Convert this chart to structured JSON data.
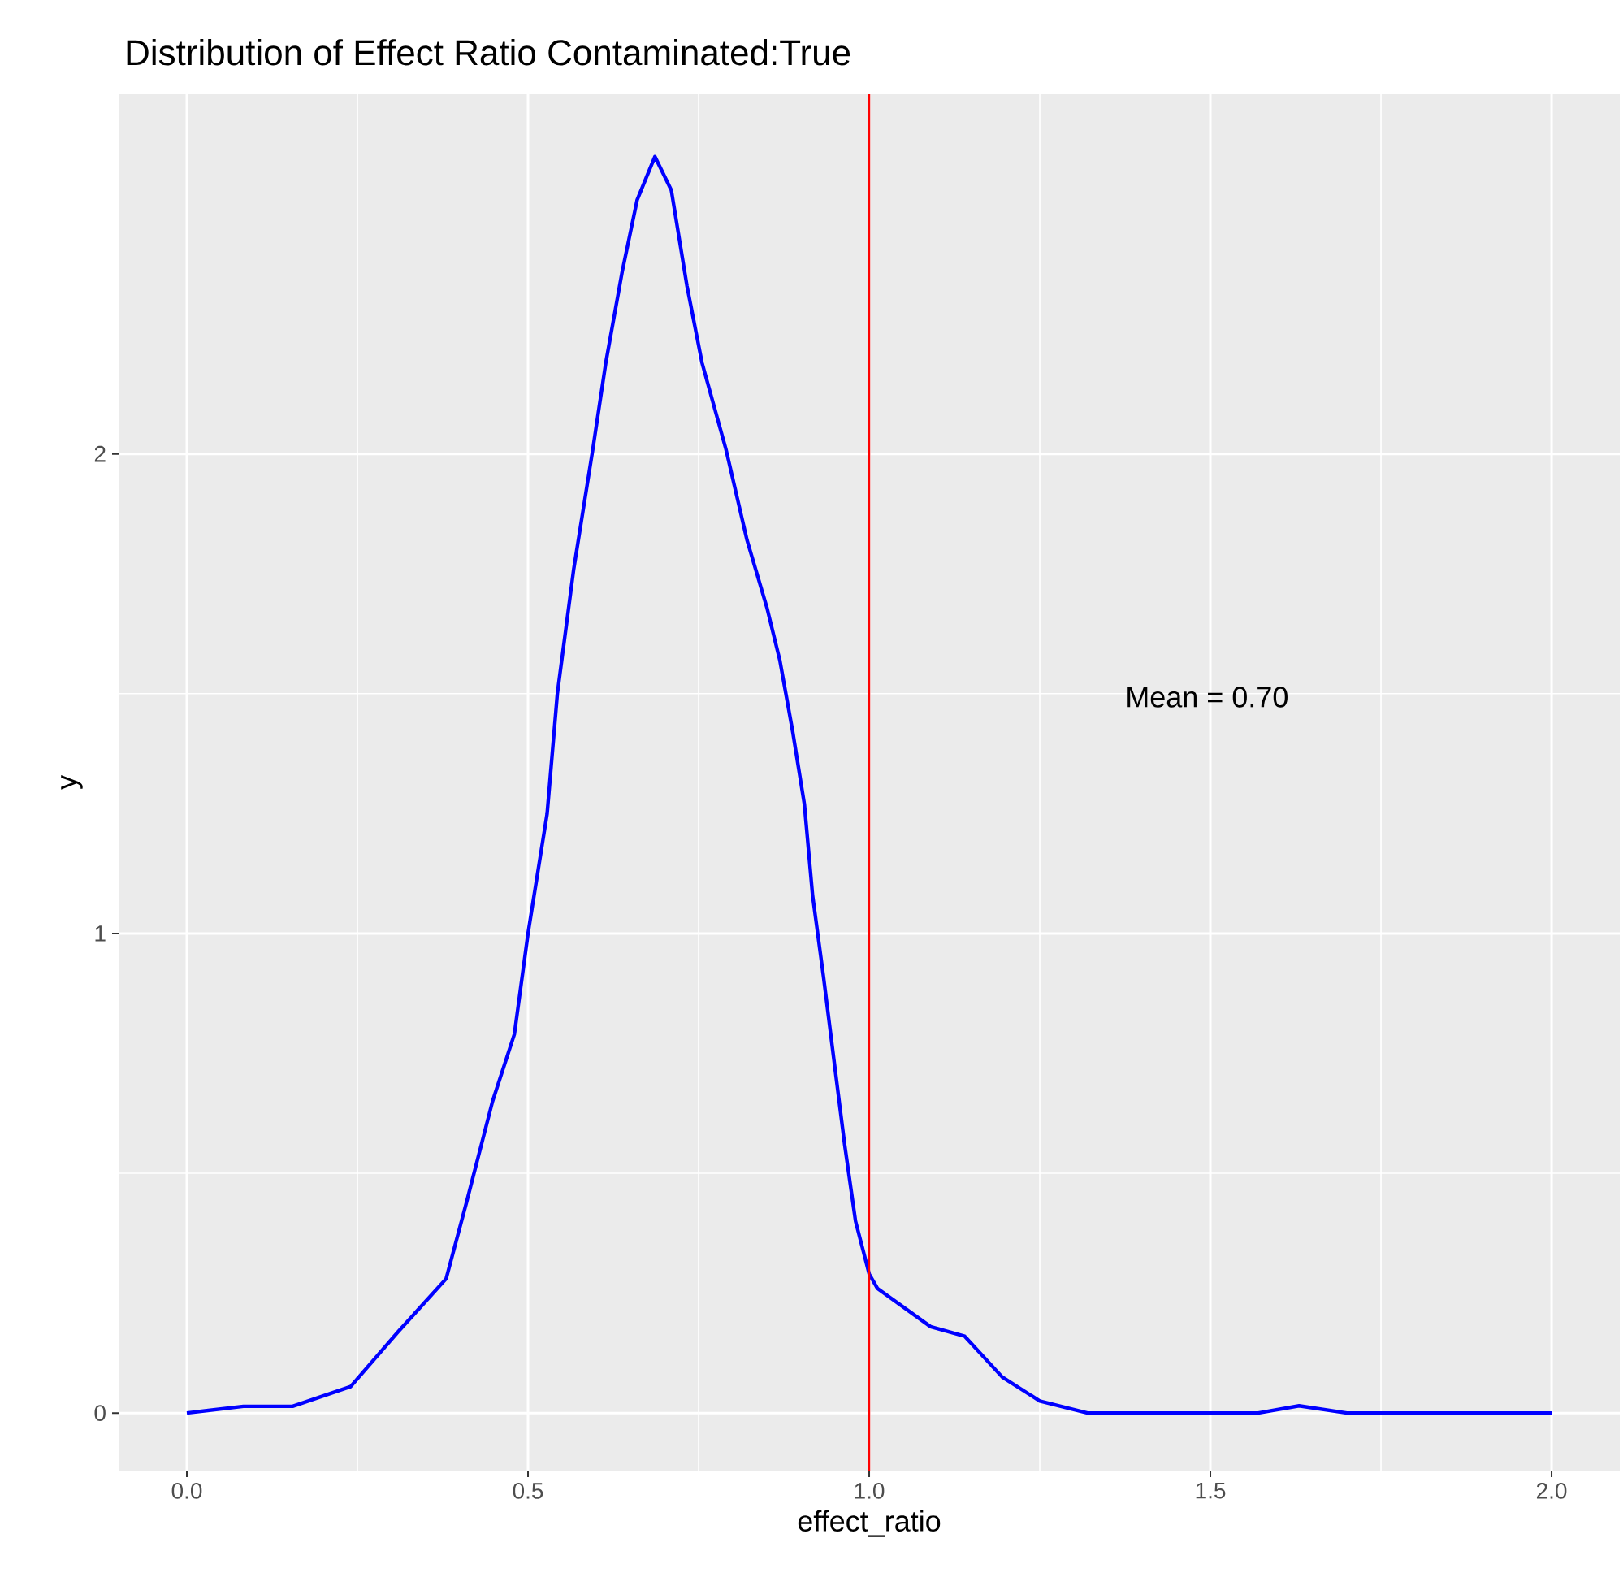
{
  "chart_data": {
    "type": "line",
    "title": "Distribution of Effect Ratio Contaminated:True",
    "xlabel": "effect_ratio",
    "ylabel": "y",
    "x": [
      0,
      0.083,
      0.155,
      0.24,
      0.31,
      0.38,
      0.41,
      0.448,
      0.48,
      0.5,
      0.528,
      0.543,
      0.567,
      0.595,
      0.614,
      0.638,
      0.66,
      0.686,
      0.71,
      0.733,
      0.755,
      0.79,
      0.821,
      0.85,
      0.869,
      0.888,
      0.905,
      0.917,
      0.933,
      0.948,
      0.964,
      0.98,
      1.0,
      1.012,
      1.09,
      1.14,
      1.195,
      1.25,
      1.32,
      1.57,
      1.63,
      1.7,
      2.0
    ],
    "series": [
      {
        "color": "#0000ff",
        "values": [
          0,
          0.014,
          0.014,
          0.055,
          0.17,
          0.28,
          0.44,
          0.65,
          0.79,
          1.0,
          1.25,
          1.5,
          1.76,
          2.01,
          2.19,
          2.38,
          2.53,
          2.62,
          2.55,
          2.35,
          2.19,
          2.01,
          1.82,
          1.68,
          1.57,
          1.42,
          1.27,
          1.08,
          0.91,
          0.74,
          0.56,
          0.4,
          0.29,
          0.26,
          0.18,
          0.16,
          0.075,
          0.025,
          0,
          0,
          0.015,
          0,
          0
        ]
      }
    ],
    "xlim": [
      -0.1,
      2.1
    ],
    "ylim": [
      -0.12,
      2.75
    ],
    "xticks": [
      {
        "value": 0,
        "label": "0.0"
      },
      {
        "value": 0.5,
        "label": "0.5"
      },
      {
        "value": 1,
        "label": "1.0"
      },
      {
        "value": 1.5,
        "label": "1.5"
      },
      {
        "value": 2,
        "label": "2.0"
      }
    ],
    "yticks": [
      0,
      1,
      2
    ],
    "grid": true,
    "ref_lines": [
      {
        "axis": "x",
        "value": 1,
        "color": "#ff0000"
      }
    ],
    "annotations": [
      "Mean = 0.70"
    ]
  }
}
